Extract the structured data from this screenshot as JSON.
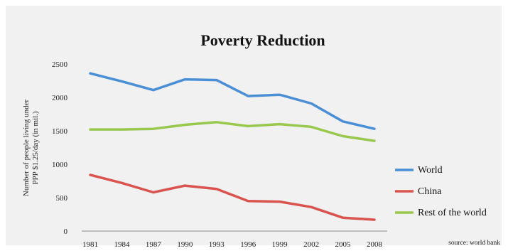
{
  "chart_data": {
    "type": "line",
    "title": "Poverty Reduction",
    "ylabel": "Number of people living under PPP $1.25/day (in mil.)",
    "ylabel_lines": [
      "Number of people living under",
      "PPP $1.25/day (in mil.)"
    ],
    "xlabel": "",
    "x": [
      "1981",
      "1984",
      "1987",
      "1990",
      "1993",
      "1996",
      "1999",
      "2002",
      "2005",
      "2008"
    ],
    "ylim": [
      0,
      2500
    ],
    "yticks": [
      0,
      500,
      1000,
      1500,
      2000,
      2500
    ],
    "grid": false,
    "legend_position": "right",
    "series": [
      {
        "name": "World",
        "color": "#4a8fd6",
        "values": [
          2360,
          2240,
          2110,
          2270,
          2260,
          2020,
          2040,
          1910,
          1640,
          1530
        ]
      },
      {
        "name": "China",
        "color": "#d9534f",
        "values": [
          840,
          720,
          580,
          680,
          630,
          450,
          440,
          360,
          200,
          170
        ]
      },
      {
        "name": "Rest of the world",
        "color": "#99c84f",
        "values": [
          1520,
          1520,
          1530,
          1590,
          1630,
          1570,
          1600,
          1560,
          1420,
          1350
        ]
      }
    ],
    "source": "source: world bank"
  }
}
